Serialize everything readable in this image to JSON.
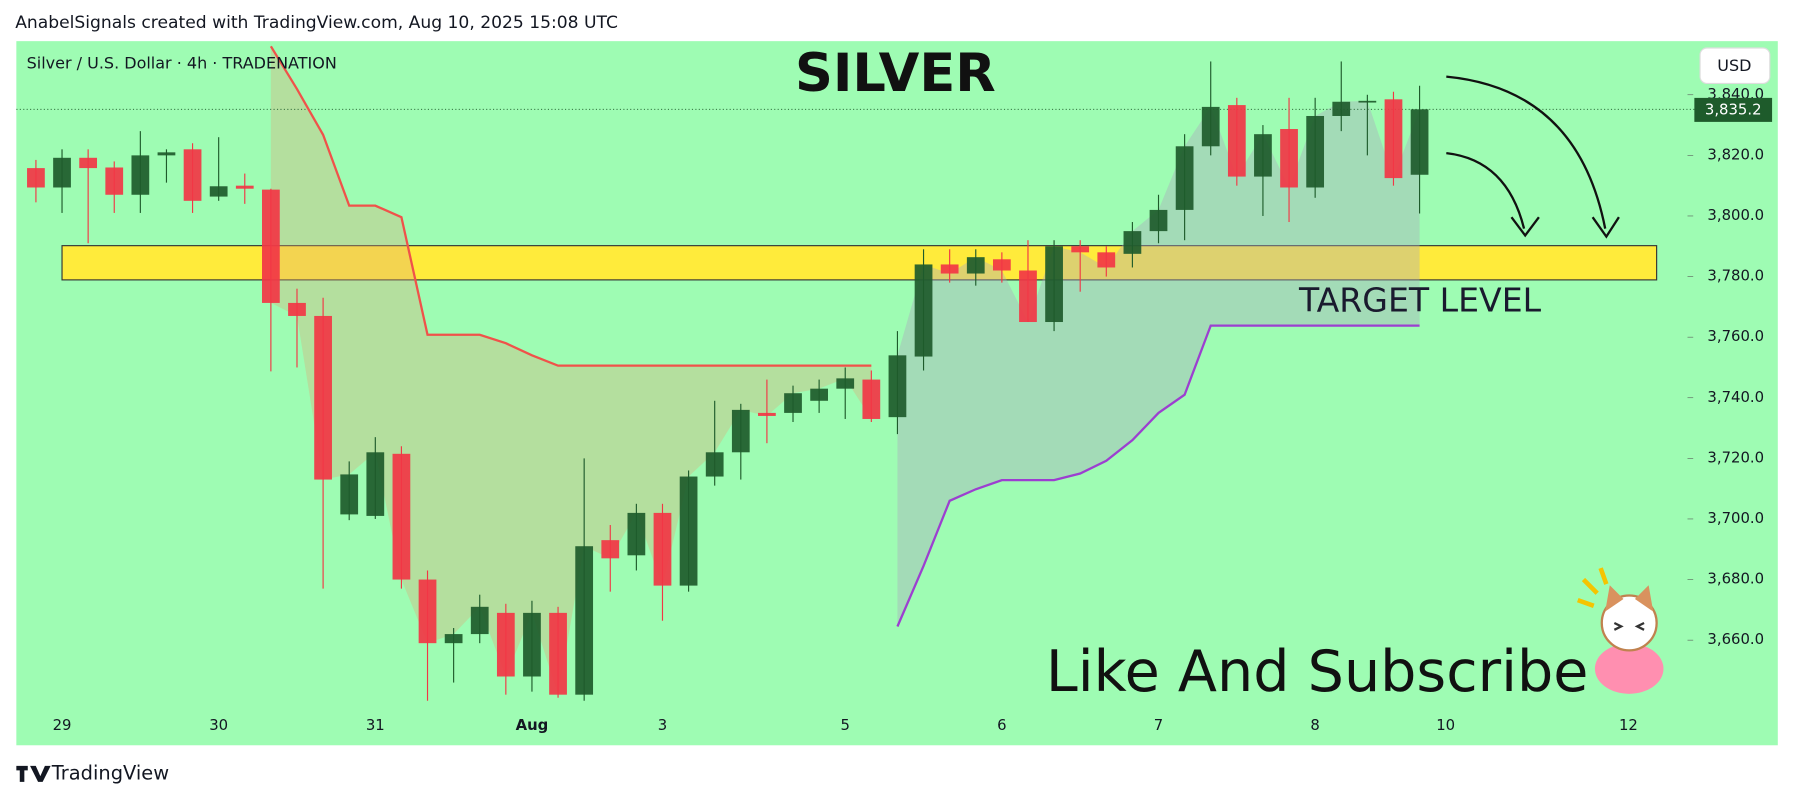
{
  "header": "AnabelSignals created with TradingView.com, Aug 10, 2025 15:08 UTC",
  "footer": "TradingView",
  "chart_data": {
    "type": "candlestick",
    "symbol": "Silver / U.S. Dollar · 4h · TRADENATION",
    "title": "SILVER",
    "annotations": [
      "TARGET LEVEL",
      "Like And Subscribe"
    ],
    "currency": "USD",
    "categories": [
      null,
      "29",
      null,
      null,
      null,
      null,
      null,
      "30",
      null,
      null,
      null,
      null,
      null,
      "31",
      null,
      null,
      null,
      null,
      null,
      "Aug",
      null,
      null,
      null,
      null,
      "3",
      null,
      null,
      null,
      null,
      null,
      null,
      "5",
      null,
      null,
      null,
      null,
      null,
      "6",
      null,
      null,
      null,
      null,
      null,
      "7",
      null,
      null,
      null,
      null,
      null,
      "8",
      null,
      null,
      null,
      null,
      "10",
      null,
      null,
      null,
      null,
      null,
      null,
      "12",
      null
    ],
    "open": [
      3815.8,
      3809.4,
      3819.2,
      3816,
      3807,
      3820,
      3822,
      3806.4,
      3810,
      3808.7,
      3771.3,
      3767,
      3701.5,
      3701,
      3721.5,
      3680,
      3659,
      3662,
      3669,
      3648,
      3669,
      3642,
      3693,
      3688,
      3702,
      3678,
      3714,
      3722,
      3735,
      3735,
      3739,
      3743,
      3746,
      3733.6,
      3753.6,
      3784,
      3781,
      3785.7,
      3782,
      3765,
      3790,
      3788,
      3787.5,
      3795,
      3802,
      3823,
      3836.6,
      3813,
      3828.7,
      3809.4,
      3833,
      3837.5,
      3838.5,
      3813.6,
      null,
      null,
      null,
      null,
      null,
      null,
      null,
      null,
      null
    ],
    "high": [
      3818.5,
      3822,
      3822,
      3818,
      3828,
      3822,
      3824,
      3826,
      3814,
      3809,
      3776,
      3773,
      3719,
      3727,
      3724,
      3683,
      3664,
      3675,
      3672,
      3673,
      3671,
      3720,
      3698,
      3705,
      3705,
      3716,
      3739,
      3738,
      3746,
      3744,
      3746,
      3750,
      3749,
      3762,
      3789,
      3789,
      3789,
      3788,
      3792,
      3792,
      3792,
      3790,
      3798,
      3807,
      3827,
      3851,
      3839,
      3830,
      3839,
      3839,
      3851,
      3840,
      3841,
      3843,
      null,
      null,
      null,
      null,
      null,
      null,
      null,
      null,
      null
    ],
    "low": [
      3804.5,
      3801,
      3791,
      3801,
      3801,
      3811,
      3801,
      3805,
      3804,
      3748.7,
      3750,
      3677,
      3699.6,
      3700,
      3677,
      3640,
      3646,
      3659,
      3642,
      3643,
      3641,
      3640,
      3676,
      3683,
      3666.4,
      3676,
      3711,
      3713,
      3725,
      3732,
      3735,
      3733,
      3732,
      3728,
      3749,
      3778,
      3777,
      3778,
      3765,
      3762,
      3775,
      3780,
      3783,
      3791,
      3792,
      3820,
      3810,
      3800,
      3798,
      3806,
      3828,
      3820,
      3810,
      3800.8,
      null,
      null,
      null,
      null,
      null,
      null,
      null,
      null,
      null
    ],
    "close": [
      3809.4,
      3819.2,
      3815.8,
      3807,
      3820,
      3821,
      3805,
      3809.8,
      3809,
      3771.3,
      3767,
      3713,
      3714.7,
      3722,
      3680,
      3659,
      3662,
      3671,
      3648,
      3669,
      3642,
      3691,
      3687,
      3702,
      3678,
      3714,
      3722,
      3736,
      3734,
      3741.5,
      3743,
      3746.4,
      3733,
      3754,
      3784,
      3781,
      3786.4,
      3782,
      3765,
      3790,
      3788,
      3783,
      3795,
      3802,
      3823,
      3836,
      3813,
      3827,
      3809.4,
      3833,
      3837.7,
      3838,
      3812.5,
      3835.2,
      null,
      null,
      null,
      null,
      null,
      null,
      null,
      null,
      null
    ],
    "up_color": "#1e5b2b",
    "down_color": "#f23645",
    "indicators": [
      {
        "color": "#f0524a",
        "values": [
          null,
          null,
          null,
          null,
          null,
          null,
          null,
          null,
          null,
          3856,
          3841.9,
          3826.8,
          3803.4,
          3803.4,
          3799.6,
          3760.8,
          3760.8,
          3760.8,
          3758,
          3754,
          3750.6,
          3750.6,
          3750.6,
          3750.6,
          3750.6,
          3750.6,
          3750.6,
          3750.6,
          3750.6,
          3750.6,
          3750.6,
          3750.6,
          3750.6,
          null,
          null,
          null,
          null,
          null,
          null,
          null,
          null,
          null,
          null,
          null,
          null,
          null,
          null,
          null,
          null,
          null,
          null,
          null,
          null,
          null,
          null,
          null,
          null,
          null,
          null,
          null,
          null,
          null,
          null
        ]
      },
      {
        "color": "#9c3fd0",
        "values": [
          null,
          null,
          null,
          null,
          null,
          null,
          null,
          null,
          null,
          null,
          null,
          null,
          null,
          null,
          null,
          null,
          null,
          null,
          null,
          null,
          null,
          null,
          null,
          null,
          null,
          null,
          null,
          null,
          null,
          null,
          null,
          null,
          null,
          3664.5,
          3684.5,
          3706,
          3709.8,
          3712.8,
          3712.8,
          3712.8,
          3715,
          3719.2,
          3726,
          3735,
          3741,
          3763.8,
          3763.8,
          3763.8,
          3763.8,
          3763.8,
          3763.8,
          3763.8,
          3763.8,
          3763.8,
          null,
          null,
          null,
          null,
          null,
          null,
          null,
          null,
          null
        ]
      }
    ],
    "zone": {
      "low": 3778.9,
      "high": 3790.2,
      "color": "#ffeb3b"
    },
    "last_price": {
      "value": 3835.2,
      "label": "3,835.2"
    },
    "xlim": [
      -0.75,
      63
    ],
    "ylim": [
      3625.3,
      3857.7
    ],
    "yticks": [
      {
        "value": 3660,
        "label": "3,660.0"
      },
      {
        "value": 3680,
        "label": "3,680.0"
      },
      {
        "value": 3700,
        "label": "3,700.0"
      },
      {
        "value": 3720,
        "label": "3,720.0"
      },
      {
        "value": 3740,
        "label": "3,740.0"
      },
      {
        "value": 3760,
        "label": "3,760.0"
      },
      {
        "value": 3780,
        "label": "3,780.0"
      },
      {
        "value": 3800,
        "label": "3,800.0"
      },
      {
        "value": 3820,
        "label": "3,820.0"
      },
      {
        "value": 3840,
        "label": "3,840.0"
      }
    ],
    "background": "#9efcb3"
  }
}
